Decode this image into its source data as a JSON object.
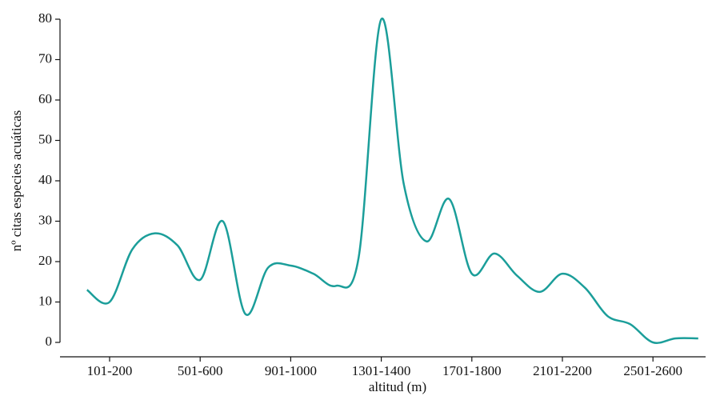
{
  "chart_data": {
    "type": "line",
    "xlabel": "altitud (m)",
    "ylabel": "nº citas especies acuáticas",
    "categories": [
      null,
      "101-200",
      null,
      null,
      null,
      "501-600",
      null,
      null,
      null,
      "901-1000",
      null,
      null,
      null,
      "1301-1400",
      null,
      null,
      null,
      "1701-1800",
      null,
      null,
      null,
      "2101-2200",
      null,
      null,
      null,
      "2501-2600",
      null,
      null
    ],
    "values": [
      13,
      10,
      23,
      27,
      24,
      15.5,
      30,
      7,
      18.5,
      19,
      17,
      14,
      21,
      80,
      39,
      25,
      35.5,
      17,
      22,
      16.5,
      12.5,
      17,
      13.5,
      6.5,
      4.5,
      0,
      1,
      1
    ],
    "color": "#1b9e9a",
    "ylim": [
      0,
      80
    ],
    "yticks": [
      0,
      10,
      20,
      30,
      40,
      50,
      60,
      70,
      80
    ],
    "grid": false
  }
}
